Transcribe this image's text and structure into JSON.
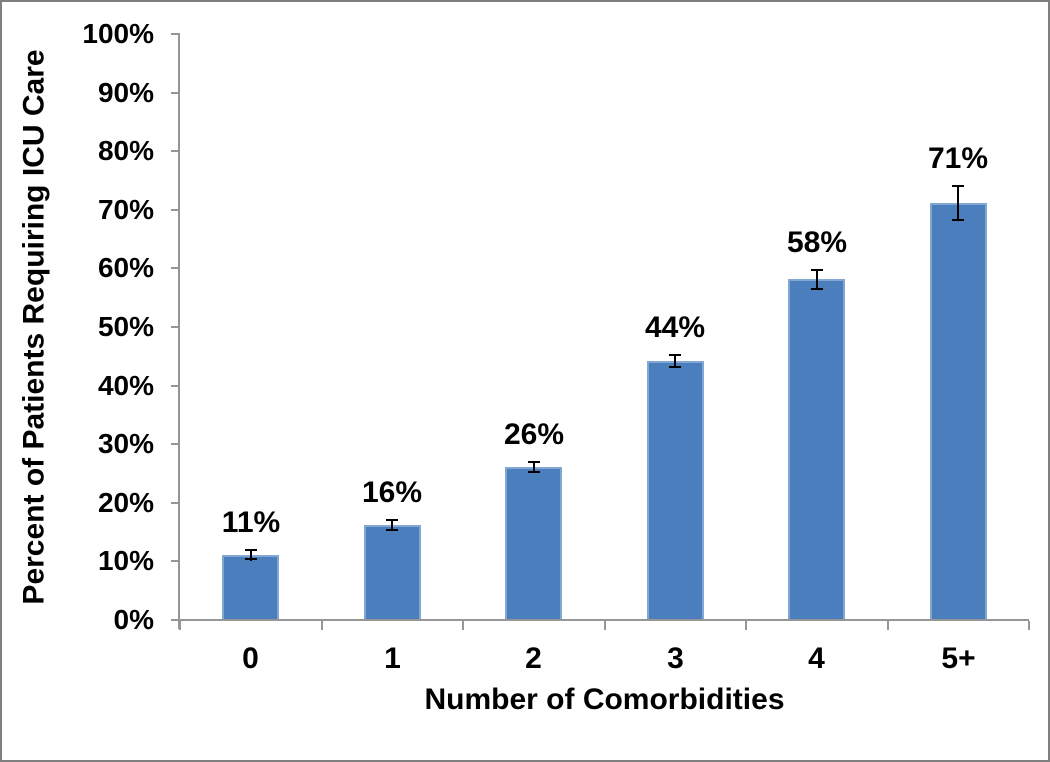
{
  "frame": {
    "background": "#ffffff",
    "border_color": "#7f7f7f"
  },
  "chart_data": {
    "type": "bar",
    "title": "",
    "xlabel": "Number of Comorbidities",
    "ylabel": "Percent of Patients Requiring ICU Care",
    "categories": [
      "0",
      "1",
      "2",
      "3",
      "4",
      "5+"
    ],
    "values": [
      11,
      16,
      26,
      44,
      58,
      71
    ],
    "data_labels": [
      "11%",
      "16%",
      "26%",
      "44%",
      "58%",
      "71%"
    ],
    "error_bars_plus_minus": [
      1,
      1,
      1,
      1.2,
      1.8,
      3
    ],
    "y_ticks": [
      {
        "value": 0,
        "label": "0%"
      },
      {
        "value": 10,
        "label": "10%"
      },
      {
        "value": 20,
        "label": "20%"
      },
      {
        "value": 30,
        "label": "30%"
      },
      {
        "value": 40,
        "label": "40%"
      },
      {
        "value": 50,
        "label": "50%"
      },
      {
        "value": 60,
        "label": "60%"
      },
      {
        "value": 70,
        "label": "70%"
      },
      {
        "value": 80,
        "label": "80%"
      },
      {
        "value": 90,
        "label": "90%"
      },
      {
        "value": 100,
        "label": "100%"
      }
    ],
    "ylim": [
      0,
      100
    ],
    "grid": false,
    "legend": "none",
    "bar_color": "#4b7ebd",
    "bar_border_color": "#83a7d3",
    "axis_color": "#969696",
    "error_bar_color": "#000000",
    "text_color": "#000000"
  }
}
